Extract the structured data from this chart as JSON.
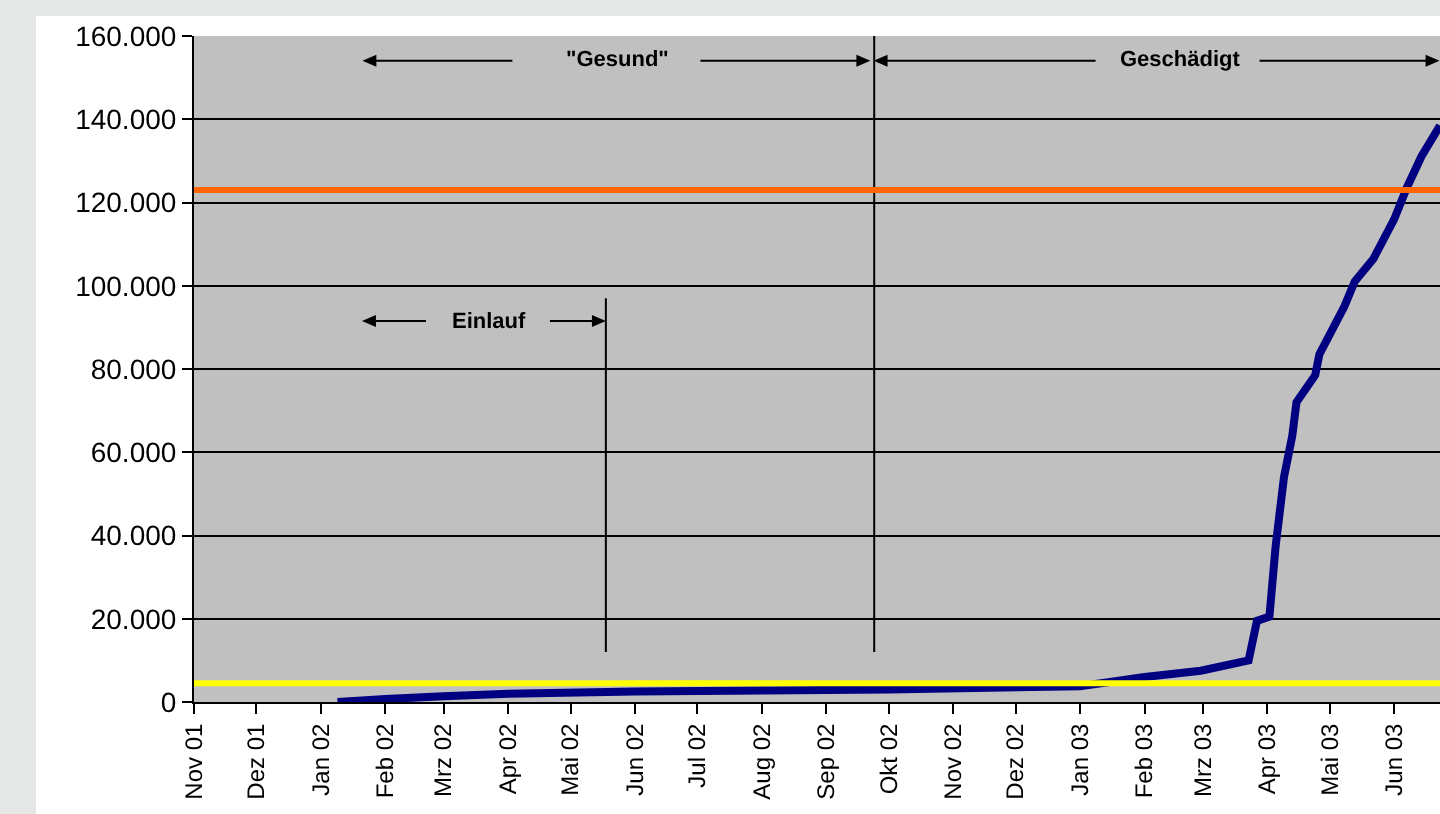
{
  "chart_data": {
    "type": "line",
    "series": [
      {
        "color": "#000080",
        "x": [
          "2002-01-09",
          "2002-02-01",
          "2002-03-01",
          "2002-04-01",
          "2002-06-01",
          "2002-10-01",
          "2003-01-01",
          "2003-02-01",
          "2003-02-28",
          "2003-03-23",
          "2003-03-27",
          "2003-04-02",
          "2003-04-05",
          "2003-04-09",
          "2003-04-13",
          "2003-04-15",
          "2003-04-24",
          "2003-04-26",
          "2003-05-08",
          "2003-05-13",
          "2003-05-22",
          "2003-06-01",
          "2003-06-07",
          "2003-06-14",
          "2003-06-23"
        ],
        "values": [
          0,
          700,
          1400,
          2000,
          2500,
          3000,
          3800,
          6000,
          7500,
          10000,
          19500,
          20500,
          37500,
          54000,
          64000,
          72000,
          78500,
          83500,
          95000,
          101000,
          106500,
          116000,
          123500,
          131000,
          138500
        ]
      },
      {
        "color": "#000000",
        "x": [
          "2002-05-18",
          "2002-05-18"
        ],
        "values": [
          12000,
          97000
        ]
      },
      {
        "color": "#000000",
        "x": [
          "2002-09-24",
          "2002-09-24"
        ],
        "values": [
          12000,
          160000
        ]
      }
    ],
    "xlim": [
      "2001-11-01",
      "2003-06-23"
    ],
    "xticks": [
      {
        "value": "2001-11-01",
        "label": "Nov 01"
      },
      {
        "value": "2001-12-01",
        "label": "Dez 01"
      },
      {
        "value": "2002-01-01",
        "label": "Jan 02"
      },
      {
        "value": "2002-02-01",
        "label": "Feb 02"
      },
      {
        "value": "2002-03-01",
        "label": "Mrz 02"
      },
      {
        "value": "2002-04-01",
        "label": "Apr 02"
      },
      {
        "value": "2002-05-01",
        "label": "Mai 02"
      },
      {
        "value": "2002-06-01",
        "label": "Jun 02"
      },
      {
        "value": "2002-07-01",
        "label": "Jul 02"
      },
      {
        "value": "2002-08-01",
        "label": "Aug 02"
      },
      {
        "value": "2002-09-01",
        "label": "Sep 02"
      },
      {
        "value": "2002-10-01",
        "label": "Okt 02"
      },
      {
        "value": "2002-11-01",
        "label": "Nov 02"
      },
      {
        "value": "2002-12-01",
        "label": "Dez 02"
      },
      {
        "value": "2003-01-01",
        "label": "Jan 03"
      },
      {
        "value": "2003-02-01",
        "label": "Feb 03"
      },
      {
        "value": "2003-03-01",
        "label": "Mrz 03"
      },
      {
        "value": "2003-04-01",
        "label": "Apr 03"
      },
      {
        "value": "2003-05-01",
        "label": "Mai 03"
      },
      {
        "value": "2003-06-01",
        "label": "Jun 03"
      }
    ],
    "ylim": [
      0,
      160000
    ],
    "yticks": [
      0,
      {
        "value": 20000,
        "label": "20.000"
      },
      {
        "value": 40000,
        "label": "40.000"
      },
      {
        "value": 60000,
        "label": "60.000"
      },
      {
        "value": 80000,
        "label": "80.000"
      },
      {
        "value": 100000,
        "label": "100.000"
      },
      {
        "value": 120000,
        "label": "120.000"
      },
      {
        "value": 140000,
        "label": "140.000"
      },
      {
        "value": 160000,
        "label": "160.000"
      }
    ],
    "grid": "y",
    "ref_lines": [
      {
        "axis": "y",
        "value": 123000,
        "color": "#ff6600"
      },
      {
        "axis": "y",
        "value": 4500,
        "color": "#ffff00"
      }
    ],
    "annotations": [
      "\"Gesund\"",
      "Geschädigt",
      "Einlauf"
    ]
  }
}
